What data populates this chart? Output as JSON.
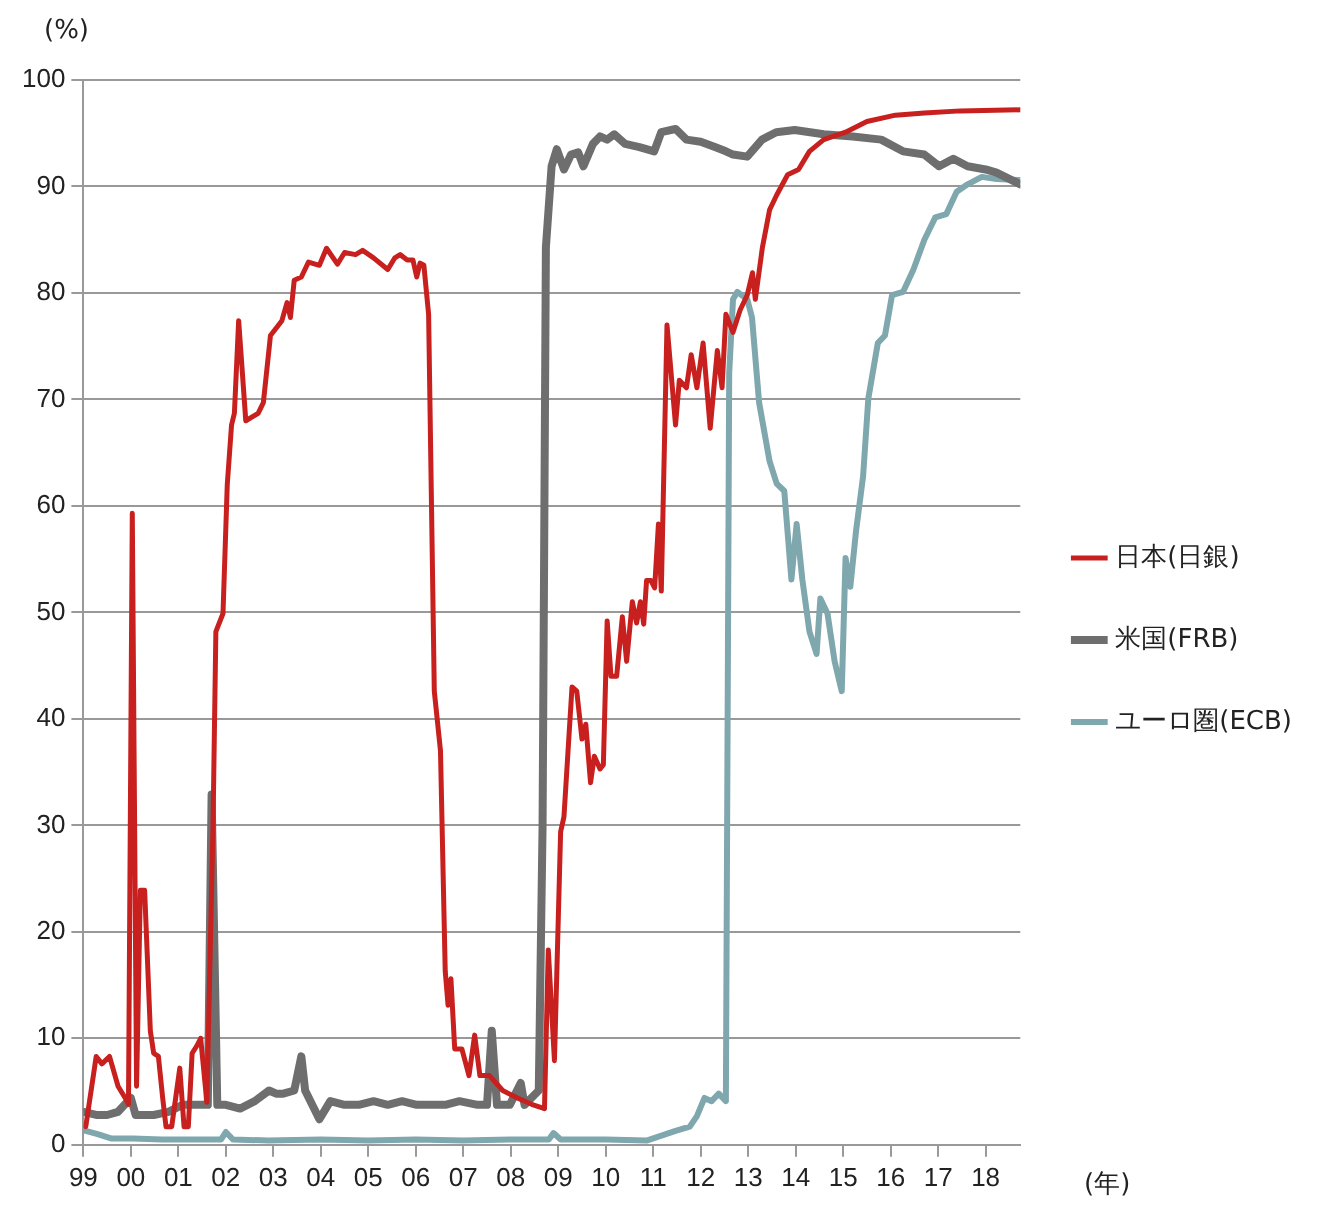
{
  "chart_data": {
    "type": "line",
    "ylabel": "(%)",
    "xlabel": "(年)",
    "xlim": [
      1999,
      2018.73
    ],
    "xticks": [
      {
        "value": 1999,
        "label": "99"
      },
      {
        "value": 2000,
        "label": "00"
      },
      {
        "value": 2001,
        "label": "01"
      },
      {
        "value": 2002,
        "label": "02"
      },
      {
        "value": 2003,
        "label": "03"
      },
      {
        "value": 2004,
        "label": "04"
      },
      {
        "value": 2005,
        "label": "05"
      },
      {
        "value": 2006,
        "label": "06"
      },
      {
        "value": 2007,
        "label": "07"
      },
      {
        "value": 2008,
        "label": "08"
      },
      {
        "value": 2009,
        "label": "09"
      },
      {
        "value": 2010,
        "label": "10"
      },
      {
        "value": 2011,
        "label": "11"
      },
      {
        "value": 2012,
        "label": "12"
      },
      {
        "value": 2013,
        "label": "13"
      },
      {
        "value": 2014,
        "label": "14"
      },
      {
        "value": 2015,
        "label": "15"
      },
      {
        "value": 2016,
        "label": "16"
      },
      {
        "value": 2017,
        "label": "17"
      },
      {
        "value": 2018,
        "label": "18"
      }
    ],
    "ylim": [
      0,
      100
    ],
    "yticks": [
      0,
      10,
      20,
      30,
      40,
      50,
      60,
      70,
      80,
      90,
      100
    ],
    "grid": "y",
    "legend": "right",
    "marker": "none",
    "line_style": "solid",
    "series": [
      {
        "name": "日本(日銀)",
        "color": "#c8201e",
        "x": [
          1999.05,
          1999.27,
          1999.39,
          1999.55,
          1999.73,
          1999.88,
          1999.95,
          2000.03,
          2000.12,
          2000.2,
          2000.29,
          2000.41,
          2000.48,
          2000.58,
          2000.67,
          2000.74,
          2000.86,
          2001.03,
          2001.12,
          2001.21,
          2001.29,
          2001.39,
          2001.47,
          2001.6,
          2001.73,
          2001.79,
          2001.94,
          2002.03,
          2002.12,
          2002.18,
          2002.27,
          2002.42,
          2002.68,
          2002.79,
          2002.94,
          2003.18,
          2003.29,
          2003.36,
          2003.44,
          2003.59,
          2003.74,
          2003.97,
          2004.12,
          2004.35,
          2004.5,
          2004.73,
          2004.88,
          2005.11,
          2005.41,
          2005.56,
          2005.67,
          2005.82,
          2005.94,
          2006.02,
          2006.09,
          2006.17,
          2006.27,
          2006.39,
          2006.52,
          2006.62,
          2006.68,
          2006.74,
          2006.82,
          2006.97,
          2007.12,
          2007.24,
          2007.35,
          2007.55,
          2007.83,
          2008.14,
          2008.44,
          2008.71,
          2008.79,
          2008.92,
          2009.05,
          2009.12,
          2009.29,
          2009.39,
          2009.5,
          2009.58,
          2009.68,
          2009.76,
          2009.88,
          2009.95,
          2010.03,
          2010.11,
          2010.23,
          2010.35,
          2010.44,
          2010.56,
          2010.65,
          2010.73,
          2010.8,
          2010.86,
          2010.95,
          2011.03,
          2011.11,
          2011.17,
          2011.29,
          2011.47,
          2011.55,
          2011.7,
          2011.8,
          2011.92,
          2012.05,
          2012.2,
          2012.35,
          2012.45,
          2012.53,
          2012.68,
          2012.83,
          2012.98,
          2013.09,
          2013.15,
          2013.3,
          2013.45,
          2013.6,
          2013.83,
          2014.06,
          2014.29,
          2014.59,
          2015.05,
          2015.5,
          2016.1,
          2016.71,
          2017.47,
          2018.73
        ],
        "values": [
          1.7,
          8.3,
          7.6,
          8.3,
          5.5,
          4.4,
          3.8,
          59.3,
          5.5,
          23.9,
          23.9,
          10.7,
          8.6,
          8.3,
          4.4,
          1.7,
          1.7,
          7.2,
          1.7,
          1.7,
          8.6,
          9.3,
          10,
          4,
          30,
          48.2,
          49.9,
          62,
          67.6,
          68.7,
          77.4,
          68,
          68.7,
          69.7,
          76,
          77.4,
          79.1,
          77.7,
          81.2,
          81.5,
          82.9,
          82.6,
          84.2,
          82.7,
          83.8,
          83.6,
          84,
          83.3,
          82.2,
          83.3,
          83.6,
          83.1,
          83.1,
          81.5,
          82.8,
          82.6,
          78,
          42.6,
          37,
          16.3,
          13.1,
          15.6,
          9,
          9,
          6.5,
          10.3,
          6.5,
          6.5,
          5.1,
          4.4,
          3.8,
          3.4,
          18.3,
          7.9,
          29.4,
          30.8,
          43,
          42.6,
          38.1,
          39.5,
          34,
          36.5,
          35.3,
          35.7,
          49.2,
          44,
          44,
          49.6,
          45.4,
          51,
          49,
          51,
          48.9,
          53,
          53,
          52.3,
          58.3,
          52,
          77,
          67.6,
          71.8,
          71.1,
          74.2,
          71.1,
          75.3,
          67.3,
          74.6,
          71.1,
          78,
          76.3,
          78.4,
          79.8,
          81.9,
          79.4,
          84.3,
          87.8,
          89.2,
          91.1,
          91.6,
          93.3,
          94.4,
          95.1,
          96.1,
          96.7,
          96.9,
          97.1,
          97.2
        ]
      },
      {
        "name": "米国(FRB)",
        "color": "#6e6e6e",
        "x": [
          1999,
          1999.27,
          1999.5,
          1999.73,
          2000,
          2000.1,
          2000.48,
          2000.79,
          2001.09,
          2001.47,
          2001.62,
          2001.7,
          2001.82,
          2002,
          2002.3,
          2002.61,
          2002.91,
          2003.06,
          2003.21,
          2003.44,
          2003.59,
          2003.67,
          2003.97,
          2004.2,
          2004.5,
          2004.8,
          2005.11,
          2005.41,
          2005.71,
          2006.02,
          2006.32,
          2006.62,
          2006.92,
          2007.3,
          2007.5,
          2007.6,
          2007.71,
          2007.98,
          2008.21,
          2008.29,
          2008.59,
          2008.67,
          2008.74,
          2008.86,
          2008.97,
          2009.12,
          2009.27,
          2009.42,
          2009.53,
          2009.73,
          2009.88,
          2010.03,
          2010.18,
          2010.41,
          2010.71,
          2011.02,
          2011.17,
          2011.47,
          2011.7,
          2012,
          2012.3,
          2012.53,
          2012.68,
          2012.98,
          2013.29,
          2013.59,
          2013.98,
          2014.59,
          2015.2,
          2015.8,
          2016.26,
          2016.71,
          2017.02,
          2017.32,
          2017.62,
          2018,
          2018.23,
          2018.73
        ],
        "values": [
          3.1,
          2.8,
          2.8,
          3.1,
          4.4,
          2.8,
          2.8,
          3.1,
          3.75,
          3.75,
          3.75,
          32.9,
          3.75,
          3.75,
          3.4,
          4.1,
          5.1,
          4.8,
          4.8,
          5.1,
          8.3,
          5.1,
          2.4,
          4.1,
          3.75,
          3.75,
          4.1,
          3.75,
          4.1,
          3.75,
          3.75,
          3.75,
          4.1,
          3.75,
          3.75,
          10.7,
          3.75,
          3.75,
          5.8,
          3.75,
          5.1,
          30,
          84.3,
          91.9,
          93.5,
          91.6,
          93,
          93.2,
          91.9,
          94,
          94.7,
          94.4,
          94.9,
          94,
          93.7,
          93.3,
          95.1,
          95.4,
          94.4,
          94.2,
          93.7,
          93.3,
          93,
          92.8,
          94.4,
          95.1,
          95.3,
          94.9,
          94.7,
          94.4,
          93.3,
          93,
          91.9,
          92.6,
          91.9,
          91.6,
          91.3,
          90.2
        ]
      },
      {
        "name": "ユーロ圏(ECB)",
        "color": "#7fa7ae",
        "x": [
          1999,
          1999.05,
          1999.3,
          1999.58,
          2000.05,
          2000.65,
          2001.4,
          2001.9,
          2002,
          2002.15,
          2002.9,
          2004,
          2005,
          2006,
          2007,
          2008,
          2008.8,
          2008.9,
          2009.05,
          2010,
          2010.86,
          2011.47,
          2011.77,
          2011.92,
          2012.08,
          2012.23,
          2012.38,
          2012.53,
          2012.6,
          2012.68,
          2012.77,
          2012.98,
          2013.08,
          2013.23,
          2013.45,
          2013.6,
          2013.76,
          2013.91,
          2014.02,
          2014.14,
          2014.29,
          2014.44,
          2014.52,
          2014.67,
          2014.82,
          2014.97,
          2015.05,
          2015.15,
          2015.27,
          2015.42,
          2015.53,
          2015.73,
          2015.88,
          2016.03,
          2016.26,
          2016.48,
          2016.71,
          2016.94,
          2017.17,
          2017.39,
          2017.62,
          2017.92,
          2018.23,
          2018.73
        ],
        "values": [
          1.5,
          1.3,
          1,
          0.6,
          0.6,
          0.5,
          0.5,
          0.5,
          1.2,
          0.5,
          0.4,
          0.5,
          0.4,
          0.5,
          0.4,
          0.5,
          0.5,
          1.1,
          0.5,
          0.5,
          0.4,
          1.3,
          1.7,
          2.7,
          4.4,
          4.1,
          4.8,
          4.1,
          72.5,
          79.4,
          80.1,
          79.4,
          77.7,
          69.7,
          64.2,
          62.1,
          61.4,
          53.1,
          58.3,
          53.1,
          48.2,
          46.1,
          51.3,
          49.9,
          45.4,
          42.6,
          55.1,
          52.4,
          57.6,
          62.8,
          70.1,
          75.3,
          76,
          79.8,
          80.1,
          82.2,
          85,
          87.1,
          87.4,
          89.5,
          90.2,
          90.9,
          90.7,
          90.6
        ]
      }
    ]
  }
}
